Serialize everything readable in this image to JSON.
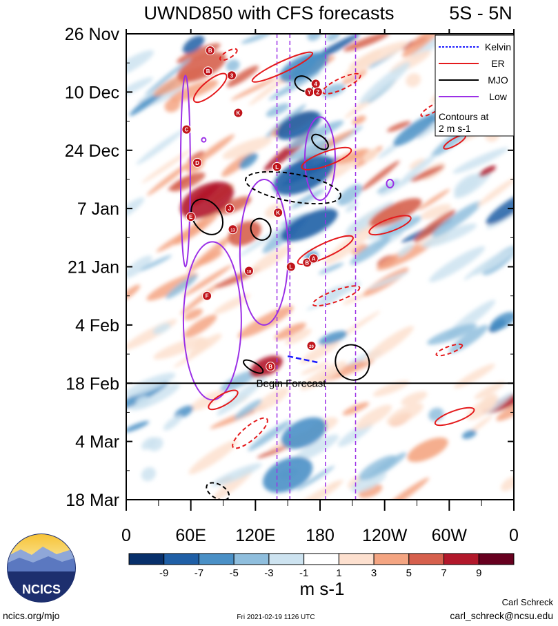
{
  "chart_data": {
    "type": "heatmap",
    "title": "UWND850 with CFS forecasts",
    "region": "5S - 5N",
    "xlabels": [
      "0",
      "60E",
      "120E",
      "180",
      "120W",
      "60W",
      "0"
    ],
    "x_ticks_deg": [
      0,
      60,
      120,
      180,
      240,
      300,
      360
    ],
    "ylabels": [
      "26 Nov",
      "10 Dec",
      "24 Dec",
      "7 Jan",
      "21 Jan",
      "4 Feb",
      "18 Feb",
      "4 Mar",
      "18 Mar"
    ],
    "y_range_days": [
      0,
      112
    ],
    "forecast_start_day": 84,
    "forecast_label": "Begin Forecast",
    "colorbar": {
      "colors": [
        "#08306b",
        "#1f5fa6",
        "#4a90c6",
        "#8fbedd",
        "#cde3f0",
        "#ffffff",
        "#fde0cf",
        "#f4a582",
        "#d6604d",
        "#b2182b",
        "#67001f"
      ],
      "labels": [
        "-9",
        "-7",
        "-5",
        "-3",
        "-1",
        "1",
        "3",
        "5",
        "7",
        "9"
      ],
      "units": "m s-1"
    },
    "legend": {
      "entries": [
        {
          "name": "Kelvin",
          "color": "#1a1aff",
          "dash": "dashed"
        },
        {
          "name": "ER",
          "color": "#e41a1c",
          "dash": "solid"
        },
        {
          "name": "MJO",
          "color": "#000000",
          "dash": "solid"
        },
        {
          "name": "Low",
          "color": "#9b30e6",
          "dash": "solid"
        }
      ],
      "note_line1": "Contours at",
      "note_line2": "2 m s-1"
    },
    "storms": [
      {
        "label": "B",
        "lon": 78,
        "day": 4
      },
      {
        "label": "B",
        "lon": 76,
        "day": 9
      },
      {
        "label": "3",
        "lon": 98,
        "day": 10
      },
      {
        "label": "K",
        "lon": 104,
        "day": 19
      },
      {
        "label": "C",
        "lon": 56,
        "day": 23
      },
      {
        "label": "D",
        "lon": 66,
        "day": 31
      },
      {
        "label": "L",
        "lon": 140,
        "day": 32
      },
      {
        "label": "J",
        "lon": 96,
        "day": 42
      },
      {
        "label": "E",
        "lon": 60,
        "day": 44
      },
      {
        "label": "K",
        "lon": 141,
        "day": 43
      },
      {
        "label": "13",
        "lon": 99,
        "day": 47
      },
      {
        "label": "4",
        "lon": 176,
        "day": 12
      },
      {
        "label": "Y",
        "lon": 170,
        "day": 14
      },
      {
        "label": "Z",
        "lon": 178,
        "day": 14
      },
      {
        "label": "L",
        "lon": 153,
        "day": 56
      },
      {
        "label": "B",
        "lon": 168,
        "day": 55
      },
      {
        "label": "A",
        "lon": 174,
        "day": 54
      },
      {
        "label": "18",
        "lon": 114,
        "day": 57
      },
      {
        "label": "F",
        "lon": 75,
        "day": 63
      },
      {
        "label": "20",
        "lon": 172,
        "day": 75
      },
      {
        "label": "B",
        "lon": 134,
        "day": 80
      }
    ]
  },
  "logo": {
    "text": "NCICS"
  },
  "footer": {
    "left": "ncics.org/mjo",
    "center": "Fri 2021-02-19 1126 UTC",
    "right_name": "Carl Schreck",
    "right_email": "carl_schreck@ncsu.edu"
  }
}
